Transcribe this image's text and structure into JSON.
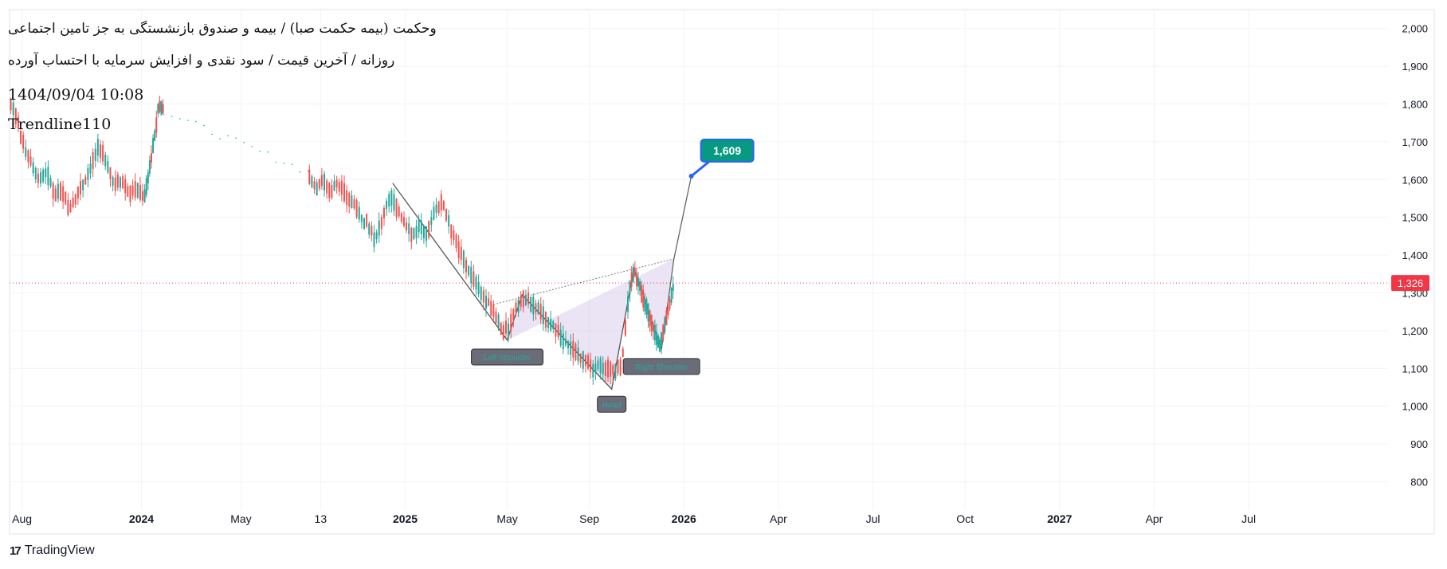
{
  "header": {
    "title": "وحکمت (بیمه حکمت صبا) / بیمه و صندوق بازنشستگی به جز تامین اجتماعی",
    "subtitle": "روزانه / آخرین قیمت / سود نقدی و افزایش سرمایه با احتساب آورده",
    "timestamp": "1404/09/04 10:08",
    "author": "Trendline110"
  },
  "brand": {
    "logo": "17",
    "name": "TradingView"
  },
  "colors": {
    "up": "#26a69a",
    "down": "#ef5350",
    "price_line": "#f23645",
    "target_label": "#089981",
    "target_border": "#2962ff",
    "pattern_fill": "#d1c4e9",
    "grid": "#f0f3fa",
    "pattern_line": "#787b86"
  },
  "chart_data": {
    "type": "candlestick",
    "title": "وحکمت (بیمه حکمت صبا) / بیمه و صندوق بازنشستگی به جز تامین اجتماعی",
    "xlabel": "",
    "ylabel": "",
    "ylim": [
      725,
      2050
    ],
    "y_ticks": [
      800,
      900,
      1000,
      1100,
      1200,
      1300,
      1400,
      1500,
      1600,
      1700,
      1800,
      1900,
      2000
    ],
    "y_tick_labels": [
      "800",
      "900",
      "1,000",
      "1,100",
      "1,200",
      "1,300",
      "1,400",
      "1,500",
      "1,600",
      "1,700",
      "1,800",
      "1,900",
      "2,000"
    ],
    "x_ticks": [
      {
        "label": "Aug",
        "t": 0.5,
        "bold": false
      },
      {
        "label": "2024",
        "t": 5.3,
        "bold": true
      },
      {
        "label": "May",
        "t": 9.3,
        "bold": false
      },
      {
        "label": "13",
        "t": 12.5,
        "bold": false
      },
      {
        "label": "2025",
        "t": 15.9,
        "bold": true
      },
      {
        "label": "May",
        "t": 20.0,
        "bold": false
      },
      {
        "label": "Sep",
        "t": 23.3,
        "bold": false
      },
      {
        "label": "2026",
        "t": 27.1,
        "bold": true
      },
      {
        "label": "Apr",
        "t": 30.9,
        "bold": false
      },
      {
        "label": "Jul",
        "t": 34.7,
        "bold": false
      },
      {
        "label": "Oct",
        "t": 38.4,
        "bold": false
      },
      {
        "label": "2027",
        "t": 42.2,
        "bold": true
      },
      {
        "label": "Apr",
        "t": 46.0,
        "bold": false
      },
      {
        "label": "Jul",
        "t": 49.8,
        "bold": false
      }
    ],
    "x_range": [
      0,
      55.4
    ],
    "last_price": 1326,
    "last_price_label": "1,326",
    "series": [
      {
        "name": "price",
        "points": [
          [
            0.0,
            1800
          ],
          [
            0.3,
            1760
          ],
          [
            0.6,
            1680
          ],
          [
            0.9,
            1640
          ],
          [
            1.2,
            1600
          ],
          [
            1.5,
            1620
          ],
          [
            1.8,
            1560
          ],
          [
            2.1,
            1570
          ],
          [
            2.4,
            1520
          ],
          [
            2.7,
            1560
          ],
          [
            3.0,
            1590
          ],
          [
            3.3,
            1640
          ],
          [
            3.6,
            1690
          ],
          [
            3.9,
            1650
          ],
          [
            4.2,
            1580
          ],
          [
            4.5,
            1600
          ],
          [
            4.8,
            1560
          ],
          [
            5.1,
            1580
          ],
          [
            5.4,
            1550
          ],
          [
            5.6,
            1620
          ],
          [
            5.8,
            1700
          ],
          [
            6.0,
            1800
          ],
          [
            6.2,
            1780
          ],
          [
            12.0,
            1620
          ],
          [
            12.3,
            1580
          ],
          [
            12.6,
            1600
          ],
          [
            12.9,
            1570
          ],
          [
            13.2,
            1590
          ],
          [
            13.5,
            1560
          ],
          [
            13.8,
            1540
          ],
          [
            14.1,
            1500
          ],
          [
            14.4,
            1480
          ],
          [
            14.7,
            1440
          ],
          [
            15.0,
            1500
          ],
          [
            15.3,
            1560
          ],
          [
            15.6,
            1520
          ],
          [
            15.9,
            1480
          ],
          [
            16.2,
            1450
          ],
          [
            16.5,
            1480
          ],
          [
            16.8,
            1460
          ],
          [
            17.1,
            1520
          ],
          [
            17.4,
            1540
          ],
          [
            17.7,
            1480
          ],
          [
            18.0,
            1420
          ],
          [
            18.3,
            1380
          ],
          [
            18.6,
            1340
          ],
          [
            18.9,
            1300
          ],
          [
            19.2,
            1280
          ],
          [
            19.5,
            1250
          ],
          [
            19.8,
            1200
          ],
          [
            20.1,
            1210
          ],
          [
            20.4,
            1270
          ],
          [
            20.7,
            1290
          ],
          [
            21.0,
            1270
          ],
          [
            21.3,
            1250
          ],
          [
            21.6,
            1230
          ],
          [
            21.9,
            1210
          ],
          [
            22.2,
            1180
          ],
          [
            22.5,
            1160
          ],
          [
            22.8,
            1140
          ],
          [
            23.1,
            1120
          ],
          [
            23.4,
            1100
          ],
          [
            23.7,
            1110
          ],
          [
            24.0,
            1100
          ],
          [
            24.3,
            1090
          ],
          [
            24.6,
            1110
          ],
          [
            24.9,
            1300
          ],
          [
            25.1,
            1360
          ],
          [
            25.3,
            1320
          ],
          [
            25.5,
            1280
          ],
          [
            25.7,
            1240
          ],
          [
            25.9,
            1200
          ],
          [
            26.1,
            1160
          ],
          [
            26.3,
            1200
          ],
          [
            26.5,
            1260
          ],
          [
            26.7,
            1326
          ]
        ]
      }
    ],
    "pattern": {
      "name": "head and shoulders (inverse)",
      "points": [
        {
          "t": 15.4,
          "v": 1590
        },
        {
          "t": 20.0,
          "v": 1175
        },
        {
          "t": 20.6,
          "v": 1295
        },
        {
          "t": 24.2,
          "v": 1045
        },
        {
          "t": 25.1,
          "v": 1365
        },
        {
          "t": 26.2,
          "v": 1150
        },
        {
          "t": 26.7,
          "v": 1390
        },
        {
          "t": 27.4,
          "v": 1609
        }
      ],
      "neckline": [
        {
          "t": 19.2,
          "v": 1265
        },
        {
          "t": 26.7,
          "v": 1390
        }
      ]
    },
    "labels": [
      {
        "text": "Left Shoulder",
        "t": 20.0,
        "v": 1130
      },
      {
        "text": "Head",
        "t": 24.2,
        "v": 1005
      },
      {
        "text": "Right Shoulder",
        "t": 26.2,
        "v": 1105
      }
    ],
    "target": {
      "t": 27.4,
      "v": 1609,
      "label": "1,609"
    }
  }
}
